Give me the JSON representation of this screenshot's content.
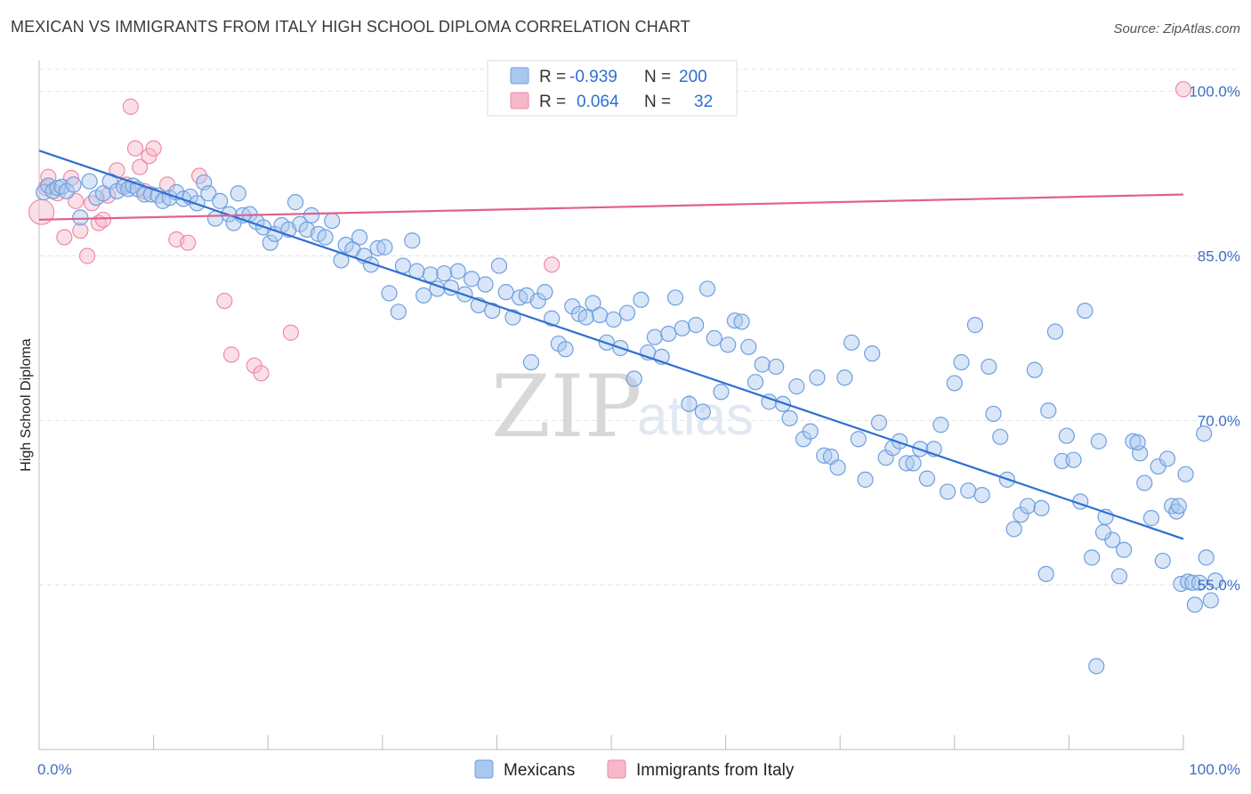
{
  "title": "MEXICAN VS IMMIGRANTS FROM ITALY HIGH SCHOOL DIPLOMA CORRELATION CHART",
  "source": "Source: ZipAtlas.com",
  "watermark": {
    "zip": "ZIP",
    "atlas": "atlas"
  },
  "legend": {
    "items": [
      {
        "r_label": "R =",
        "r_value": "-0.939",
        "n_label": "N =",
        "n_value": "200",
        "color": "#a9c8ee"
      },
      {
        "r_label": "R =",
        "r_value": "0.064",
        "n_label": "N =",
        "n_value": "32",
        "color": "#f6b8c8"
      }
    ]
  },
  "bottom_legend": [
    {
      "label": "Mexicans",
      "color": "#a9c8ee"
    },
    {
      "label": "Immigrants from Italy",
      "color": "#f6b8c8"
    }
  ],
  "chart_data": {
    "type": "scatter",
    "title": "MEXICAN VS IMMIGRANTS FROM ITALY HIGH SCHOOL DIPLOMA CORRELATION CHART",
    "xlabel": "",
    "ylabel": "High School Diploma",
    "xlim": [
      0,
      100
    ],
    "ylim": [
      40,
      102
    ],
    "x_tick_labels": [
      "0.0%",
      "100.0%"
    ],
    "y_ticks": [
      55,
      70,
      85,
      100
    ],
    "y_tick_labels": [
      "55.0%",
      "70.0%",
      "85.0%",
      "100.0%"
    ],
    "grid": true,
    "colors": {
      "mexicans": "#6f9fe0",
      "italy": "#ee8aa8",
      "mex_line": "#2f6fd0",
      "ita_line": "#e06090"
    },
    "series": [
      {
        "name": "Mexicans",
        "trend": {
          "x": [
            0,
            100
          ],
          "y": [
            94.6,
            59.2
          ]
        },
        "points": [
          [
            0.4,
            90.8
          ],
          [
            0.8,
            91.4
          ],
          [
            1.2,
            90.9
          ],
          [
            1.6,
            91.2
          ],
          [
            2.0,
            91.3
          ],
          [
            2.4,
            90.9
          ],
          [
            3.0,
            91.5
          ],
          [
            3.6,
            88.5
          ],
          [
            4.4,
            91.8
          ],
          [
            5.0,
            90.3
          ],
          [
            5.6,
            90.7
          ],
          [
            6.2,
            91.8
          ],
          [
            6.8,
            90.9
          ],
          [
            7.4,
            91.3
          ],
          [
            7.8,
            91.1
          ],
          [
            8.2,
            91.4
          ],
          [
            8.6,
            91.1
          ],
          [
            9.2,
            90.6
          ],
          [
            9.8,
            90.6
          ],
          [
            10.4,
            90.5
          ],
          [
            10.8,
            90.0
          ],
          [
            11.4,
            90.3
          ],
          [
            12.0,
            90.8
          ],
          [
            12.6,
            90.2
          ],
          [
            13.2,
            90.4
          ],
          [
            13.8,
            89.8
          ],
          [
            14.4,
            91.7
          ],
          [
            14.8,
            90.7
          ],
          [
            15.4,
            88.4
          ],
          [
            15.8,
            90.0
          ],
          [
            16.6,
            88.8
          ],
          [
            17.0,
            88.0
          ],
          [
            17.4,
            90.7
          ],
          [
            17.8,
            88.7
          ],
          [
            18.4,
            88.8
          ],
          [
            19.0,
            88.1
          ],
          [
            19.6,
            87.6
          ],
          [
            20.2,
            86.2
          ],
          [
            20.6,
            87.0
          ],
          [
            21.2,
            87.8
          ],
          [
            21.8,
            87.4
          ],
          [
            22.4,
            89.9
          ],
          [
            22.8,
            87.9
          ],
          [
            23.4,
            87.4
          ],
          [
            23.8,
            88.7
          ],
          [
            24.4,
            87.0
          ],
          [
            25.0,
            86.7
          ],
          [
            25.6,
            88.2
          ],
          [
            26.4,
            84.6
          ],
          [
            26.8,
            86.0
          ],
          [
            27.4,
            85.6
          ],
          [
            28.0,
            86.7
          ],
          [
            28.4,
            85.0
          ],
          [
            29.0,
            84.2
          ],
          [
            29.6,
            85.7
          ],
          [
            30.2,
            85.8
          ],
          [
            30.6,
            81.6
          ],
          [
            31.4,
            79.9
          ],
          [
            31.8,
            84.1
          ],
          [
            32.6,
            86.4
          ],
          [
            33.0,
            83.6
          ],
          [
            33.6,
            81.4
          ],
          [
            34.2,
            83.3
          ],
          [
            34.8,
            82.0
          ],
          [
            35.4,
            83.4
          ],
          [
            36.0,
            82.1
          ],
          [
            36.6,
            83.6
          ],
          [
            37.2,
            81.5
          ],
          [
            37.8,
            82.9
          ],
          [
            38.4,
            80.5
          ],
          [
            39.0,
            82.4
          ],
          [
            39.6,
            80.0
          ],
          [
            40.2,
            84.1
          ],
          [
            40.8,
            81.7
          ],
          [
            41.4,
            79.4
          ],
          [
            42.0,
            81.2
          ],
          [
            42.6,
            81.4
          ],
          [
            43.0,
            75.3
          ],
          [
            43.6,
            80.9
          ],
          [
            44.2,
            81.7
          ],
          [
            44.8,
            79.3
          ],
          [
            45.4,
            77.0
          ],
          [
            46.0,
            76.5
          ],
          [
            46.6,
            80.4
          ],
          [
            47.2,
            79.7
          ],
          [
            47.8,
            79.4
          ],
          [
            48.4,
            80.7
          ],
          [
            49.0,
            79.6
          ],
          [
            49.6,
            77.1
          ],
          [
            50.2,
            79.2
          ],
          [
            50.8,
            76.6
          ],
          [
            51.4,
            79.8
          ],
          [
            52.0,
            73.8
          ],
          [
            52.6,
            81.0
          ],
          [
            53.2,
            76.2
          ],
          [
            53.8,
            77.6
          ],
          [
            54.4,
            75.8
          ],
          [
            55.0,
            77.9
          ],
          [
            55.6,
            81.2
          ],
          [
            56.2,
            78.4
          ],
          [
            56.8,
            71.5
          ],
          [
            57.4,
            78.7
          ],
          [
            58.0,
            70.8
          ],
          [
            58.4,
            82.0
          ],
          [
            59.0,
            77.5
          ],
          [
            59.6,
            72.6
          ],
          [
            60.2,
            76.9
          ],
          [
            60.8,
            79.1
          ],
          [
            61.4,
            79.0
          ],
          [
            62.0,
            76.7
          ],
          [
            62.6,
            73.5
          ],
          [
            63.2,
            75.1
          ],
          [
            63.8,
            71.7
          ],
          [
            64.4,
            74.9
          ],
          [
            65.0,
            71.5
          ],
          [
            65.6,
            70.2
          ],
          [
            66.2,
            73.1
          ],
          [
            66.8,
            68.3
          ],
          [
            67.4,
            69.0
          ],
          [
            68.0,
            73.9
          ],
          [
            68.6,
            66.8
          ],
          [
            69.2,
            66.7
          ],
          [
            69.8,
            65.7
          ],
          [
            70.4,
            73.9
          ],
          [
            71.0,
            77.1
          ],
          [
            71.6,
            68.3
          ],
          [
            72.2,
            64.6
          ],
          [
            72.8,
            76.1
          ],
          [
            73.4,
            69.8
          ],
          [
            74.0,
            66.6
          ],
          [
            74.6,
            67.5
          ],
          [
            75.2,
            68.1
          ],
          [
            75.8,
            66.1
          ],
          [
            76.4,
            66.1
          ],
          [
            77.0,
            67.4
          ],
          [
            77.6,
            64.7
          ],
          [
            78.2,
            67.4
          ],
          [
            78.8,
            69.6
          ],
          [
            79.4,
            63.5
          ],
          [
            80.0,
            73.4
          ],
          [
            80.6,
            75.3
          ],
          [
            81.2,
            63.6
          ],
          [
            81.8,
            78.7
          ],
          [
            82.4,
            63.2
          ],
          [
            83.0,
            74.9
          ],
          [
            83.4,
            70.6
          ],
          [
            84.0,
            68.5
          ],
          [
            84.6,
            64.6
          ],
          [
            85.2,
            60.1
          ],
          [
            85.8,
            61.4
          ],
          [
            86.4,
            62.2
          ],
          [
            87.0,
            74.6
          ],
          [
            87.6,
            62.0
          ],
          [
            88.2,
            70.9
          ],
          [
            88.8,
            78.1
          ],
          [
            89.4,
            66.3
          ],
          [
            89.8,
            68.6
          ],
          [
            90.4,
            66.4
          ],
          [
            91.0,
            62.6
          ],
          [
            91.4,
            80.0
          ],
          [
            92.0,
            57.5
          ],
          [
            92.6,
            68.1
          ],
          [
            93.2,
            61.2
          ],
          [
            93.8,
            59.1
          ],
          [
            94.4,
            55.8
          ],
          [
            94.8,
            58.2
          ],
          [
            95.6,
            68.1
          ],
          [
            96.2,
            67.0
          ],
          [
            96.6,
            64.3
          ],
          [
            97.2,
            61.1
          ],
          [
            97.8,
            65.8
          ],
          [
            98.2,
            57.2
          ],
          [
            98.6,
            66.5
          ],
          [
            99.0,
            62.2
          ],
          [
            99.4,
            61.7
          ],
          [
            99.6,
            62.2
          ],
          [
            99.8,
            55.1
          ],
          [
            100.2,
            65.1
          ],
          [
            100.4,
            55.3
          ],
          [
            100.8,
            55.2
          ],
          [
            101.0,
            53.2
          ],
          [
            101.4,
            55.2
          ],
          [
            101.8,
            68.8
          ],
          [
            102.0,
            57.5
          ],
          [
            102.4,
            53.6
          ],
          [
            102.8,
            55.4
          ],
          [
            96.0,
            68.0
          ],
          [
            93.0,
            59.8
          ],
          [
            92.4,
            47.6
          ],
          [
            88.0,
            56.0
          ]
        ]
      },
      {
        "name": "Immigrants from Italy",
        "trend": {
          "x": [
            0,
            100
          ],
          "y": [
            88.3,
            90.6
          ]
        },
        "points": [
          [
            0.2,
            89.0
          ],
          [
            0.6,
            91.2
          ],
          [
            0.8,
            92.2
          ],
          [
            1.6,
            90.7
          ],
          [
            2.2,
            86.7
          ],
          [
            2.8,
            92.1
          ],
          [
            3.2,
            90.0
          ],
          [
            3.6,
            87.3
          ],
          [
            4.2,
            85.0
          ],
          [
            4.6,
            89.8
          ],
          [
            5.2,
            88.0
          ],
          [
            5.6,
            88.3
          ],
          [
            6.0,
            90.5
          ],
          [
            6.8,
            92.8
          ],
          [
            7.6,
            91.5
          ],
          [
            8.0,
            98.6
          ],
          [
            8.4,
            94.8
          ],
          [
            8.8,
            93.1
          ],
          [
            9.2,
            90.9
          ],
          [
            9.6,
            94.1
          ],
          [
            10.0,
            94.8
          ],
          [
            11.2,
            91.5
          ],
          [
            12.0,
            86.5
          ],
          [
            13.0,
            86.2
          ],
          [
            14.0,
            92.3
          ],
          [
            16.2,
            80.9
          ],
          [
            16.8,
            76.0
          ],
          [
            18.8,
            75.0
          ],
          [
            19.4,
            74.3
          ],
          [
            22.0,
            78.0
          ],
          [
            44.8,
            84.2
          ],
          [
            100.0,
            100.2
          ]
        ]
      }
    ]
  }
}
